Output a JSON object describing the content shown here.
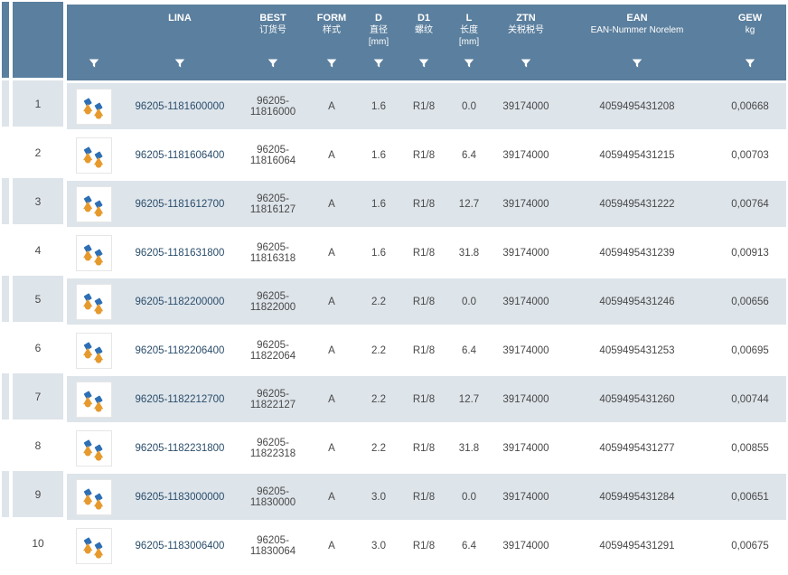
{
  "colors": {
    "header_bg": "#5b7f9e",
    "header_text": "#ffffff",
    "stripe_odd": "#dde4ea",
    "stripe_even": "#ffffff",
    "body_text": "#484848",
    "lina_text": "#2a4d6b",
    "thumb_border": "#e6e6e6",
    "thumb_blue": "#2d6fb5",
    "thumb_orange": "#e69a2e"
  },
  "header": {
    "lina": {
      "label": "LINA",
      "sub": ""
    },
    "best": {
      "label": "BEST",
      "sub": "订货号"
    },
    "form": {
      "label": "FORM",
      "sub": "样式"
    },
    "d": {
      "label": "D",
      "sub": "直径",
      "unit": "[mm]"
    },
    "d1": {
      "label": "D1",
      "sub": "螺纹"
    },
    "l": {
      "label": "L",
      "sub": "长度",
      "unit": "[mm]"
    },
    "ztn": {
      "label": "ZTN",
      "sub": "关税税号"
    },
    "ean": {
      "label": "EAN",
      "sub": "EAN-Nummer Norelem"
    },
    "gew": {
      "label": "GEW",
      "sub": "kg"
    }
  },
  "rows": [
    {
      "idx": "1",
      "lina": "96205-1181600000",
      "best": "96205-11816000",
      "form": "A",
      "d": "1.6",
      "d1": "R1/8",
      "l": "0.0",
      "ztn": "39174000",
      "ean": "4059495431208",
      "gew": "0,00668"
    },
    {
      "idx": "2",
      "lina": "96205-1181606400",
      "best": "96205-11816064",
      "form": "A",
      "d": "1.6",
      "d1": "R1/8",
      "l": "6.4",
      "ztn": "39174000",
      "ean": "4059495431215",
      "gew": "0,00703"
    },
    {
      "idx": "3",
      "lina": "96205-1181612700",
      "best": "96205-11816127",
      "form": "A",
      "d": "1.6",
      "d1": "R1/8",
      "l": "12.7",
      "ztn": "39174000",
      "ean": "4059495431222",
      "gew": "0,00764"
    },
    {
      "idx": "4",
      "lina": "96205-1181631800",
      "best": "96205-11816318",
      "form": "A",
      "d": "1.6",
      "d1": "R1/8",
      "l": "31.8",
      "ztn": "39174000",
      "ean": "4059495431239",
      "gew": "0,00913"
    },
    {
      "idx": "5",
      "lina": "96205-1182200000",
      "best": "96205-11822000",
      "form": "A",
      "d": "2.2",
      "d1": "R1/8",
      "l": "0.0",
      "ztn": "39174000",
      "ean": "4059495431246",
      "gew": "0,00656"
    },
    {
      "idx": "6",
      "lina": "96205-1182206400",
      "best": "96205-11822064",
      "form": "A",
      "d": "2.2",
      "d1": "R1/8",
      "l": "6.4",
      "ztn": "39174000",
      "ean": "4059495431253",
      "gew": "0,00695"
    },
    {
      "idx": "7",
      "lina": "96205-1182212700",
      "best": "96205-11822127",
      "form": "A",
      "d": "2.2",
      "d1": "R1/8",
      "l": "12.7",
      "ztn": "39174000",
      "ean": "4059495431260",
      "gew": "0,00744"
    },
    {
      "idx": "8",
      "lina": "96205-1182231800",
      "best": "96205-11822318",
      "form": "A",
      "d": "2.2",
      "d1": "R1/8",
      "l": "31.8",
      "ztn": "39174000",
      "ean": "4059495431277",
      "gew": "0,00855"
    },
    {
      "idx": "9",
      "lina": "96205-1183000000",
      "best": "96205-11830000",
      "form": "A",
      "d": "3.0",
      "d1": "R1/8",
      "l": "0.0",
      "ztn": "39174000",
      "ean": "4059495431284",
      "gew": "0,00651"
    },
    {
      "idx": "10",
      "lina": "96205-1183006400",
      "best": "96205-11830064",
      "form": "A",
      "d": "3.0",
      "d1": "R1/8",
      "l": "6.4",
      "ztn": "39174000",
      "ean": "4059495431291",
      "gew": "0,00675"
    }
  ]
}
